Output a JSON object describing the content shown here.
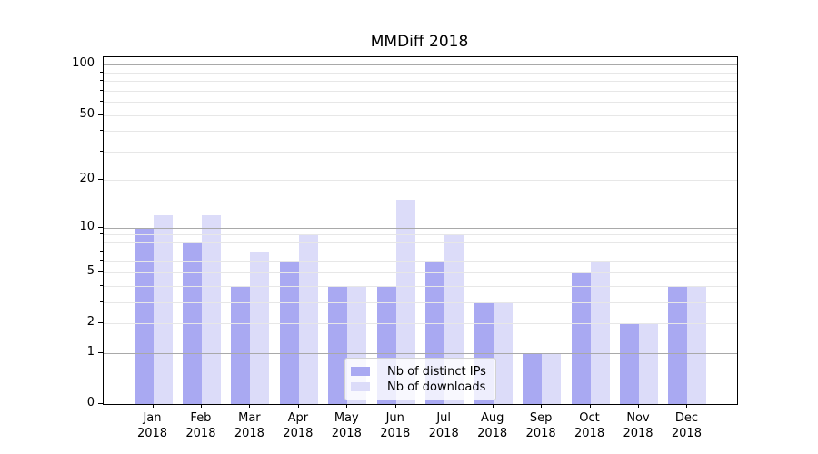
{
  "title": "MMDiff 2018",
  "chart_data": {
    "type": "bar",
    "title": "MMDiff 2018",
    "categories": [
      "Jan",
      "Feb",
      "Mar",
      "Apr",
      "May",
      "Jun",
      "Jul",
      "Aug",
      "Sep",
      "Oct",
      "Nov",
      "Dec"
    ],
    "category_year": "2018",
    "series": [
      {
        "name": "Nb of distinct IPs",
        "color": "#a9a9f2",
        "values": [
          10,
          8,
          4,
          6,
          4,
          4,
          6,
          3,
          1,
          5,
          2,
          4
        ]
      },
      {
        "name": "Nb of downloads",
        "color": "#dcdcf9",
        "values": [
          12,
          12,
          7,
          9,
          4,
          15,
          9,
          3,
          1,
          6,
          2,
          4
        ]
      }
    ],
    "xlabel": "",
    "ylabel": "",
    "y_axis": {
      "scale": "log1p",
      "ylim": [
        0,
        111
      ],
      "tick_labels": [
        0,
        1,
        2,
        5,
        10,
        20,
        50,
        100
      ],
      "major_gridlines": [
        1,
        10,
        100
      ],
      "minor_gridlines": [
        2,
        3,
        4,
        5,
        6,
        7,
        8,
        9,
        20,
        30,
        40,
        50,
        60,
        70,
        80,
        90
      ],
      "grid": true,
      "grid_above_bars": true
    },
    "legend": {
      "position": "lower-center",
      "entries": [
        "Nb of distinct IPs",
        "Nb of downloads"
      ]
    }
  }
}
